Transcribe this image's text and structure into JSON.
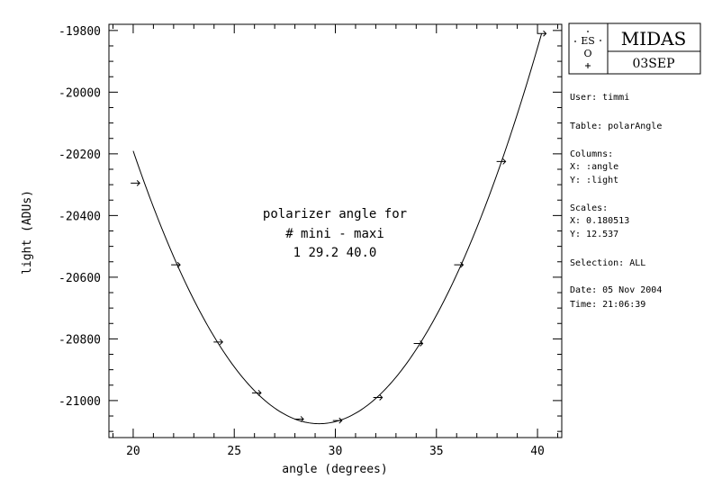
{
  "chart_data": {
    "type": "scatter",
    "title": "",
    "xlabel": "angle (degrees)",
    "ylabel": "light (ADUs)",
    "xlim": [
      18.8,
      41.2
    ],
    "ylim": [
      -21120,
      -19780
    ],
    "x_ticks": [
      20,
      25,
      30,
      35,
      40
    ],
    "y_ticks": [
      -21000,
      -20800,
      -20600,
      -20400,
      -20200,
      -20000,
      -19800
    ],
    "x_tick_labels": [
      "20",
      "25",
      "30",
      "35",
      "40"
    ],
    "y_tick_labels": [
      "-21000",
      "-20800",
      "-20600",
      "-20400",
      "-20200",
      "-20000",
      "-19800"
    ],
    "points": [
      {
        "x": 20.1,
        "y": -20295
      },
      {
        "x": 22.1,
        "y": -20560
      },
      {
        "x": 24.2,
        "y": -20810
      },
      {
        "x": 26.1,
        "y": -20975
      },
      {
        "x": 28.2,
        "y": -21060
      },
      {
        "x": 30.1,
        "y": -21065
      },
      {
        "x": 32.1,
        "y": -20990
      },
      {
        "x": 34.1,
        "y": -20815
      },
      {
        "x": 36.1,
        "y": -20560
      },
      {
        "x": 38.2,
        "y": -20225
      },
      {
        "x": 40.2,
        "y": -19810
      }
    ],
    "fit": {
      "vertex_x": 29.2,
      "vertex_y": -21075,
      "a": 10.45,
      "x_range": [
        20.0,
        40.2
      ]
    },
    "annotation": [
      "polarizer angle for",
      "# mini - maxi",
      "1 29.2 40.0"
    ],
    "grid": false
  },
  "logo": {
    "text": "MIDAS",
    "version": "03SEP",
    "emblem_text": "ES",
    "emblem_letter": "O"
  },
  "info": {
    "user": "User: timmi",
    "table": "Table: polarAngle",
    "columns_title": "Columns:",
    "col_x": "X: :angle",
    "col_y": "Y: :light",
    "scales_title": "Scales:",
    "scale_x": "X: 0.180513",
    "scale_y": "Y: 12.537",
    "selection": "Selection:  ALL",
    "date": "Date: 05 Nov 2004",
    "time": "Time: 21:06:39"
  }
}
